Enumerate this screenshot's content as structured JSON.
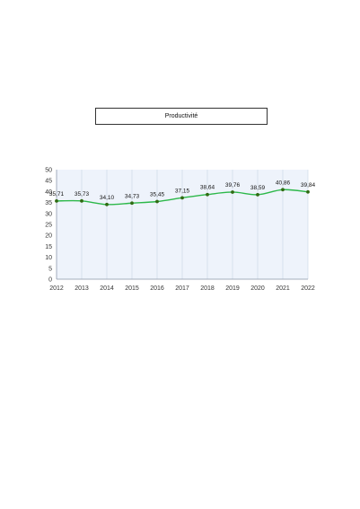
{
  "chart_data": {
    "type": "line",
    "title": "Productivité",
    "x": [
      "2012",
      "2013",
      "2014",
      "2015",
      "2016",
      "2017",
      "2018",
      "2019",
      "2020",
      "2021",
      "2022"
    ],
    "series": [
      {
        "values": [
          35.71,
          35.73,
          34.1,
          34.73,
          35.45,
          37.15,
          38.64,
          39.76,
          38.59,
          40.86,
          39.84
        ],
        "labels": [
          "35,71",
          "35,73",
          "34,10",
          "34,73",
          "35,45",
          "37,15",
          "38,64",
          "39,76",
          "38,59",
          "40,86",
          "39,84"
        ]
      }
    ],
    "ylim": [
      0,
      50
    ],
    "yticks": [
      0,
      5,
      10,
      15,
      20,
      25,
      30,
      35,
      40,
      45,
      50
    ],
    "grid": "vertical",
    "colors": {
      "line": "#2db84a",
      "marker": "#2f6b12",
      "plot_bg": "#eef3fb",
      "grid": "#c9d4e6"
    }
  }
}
